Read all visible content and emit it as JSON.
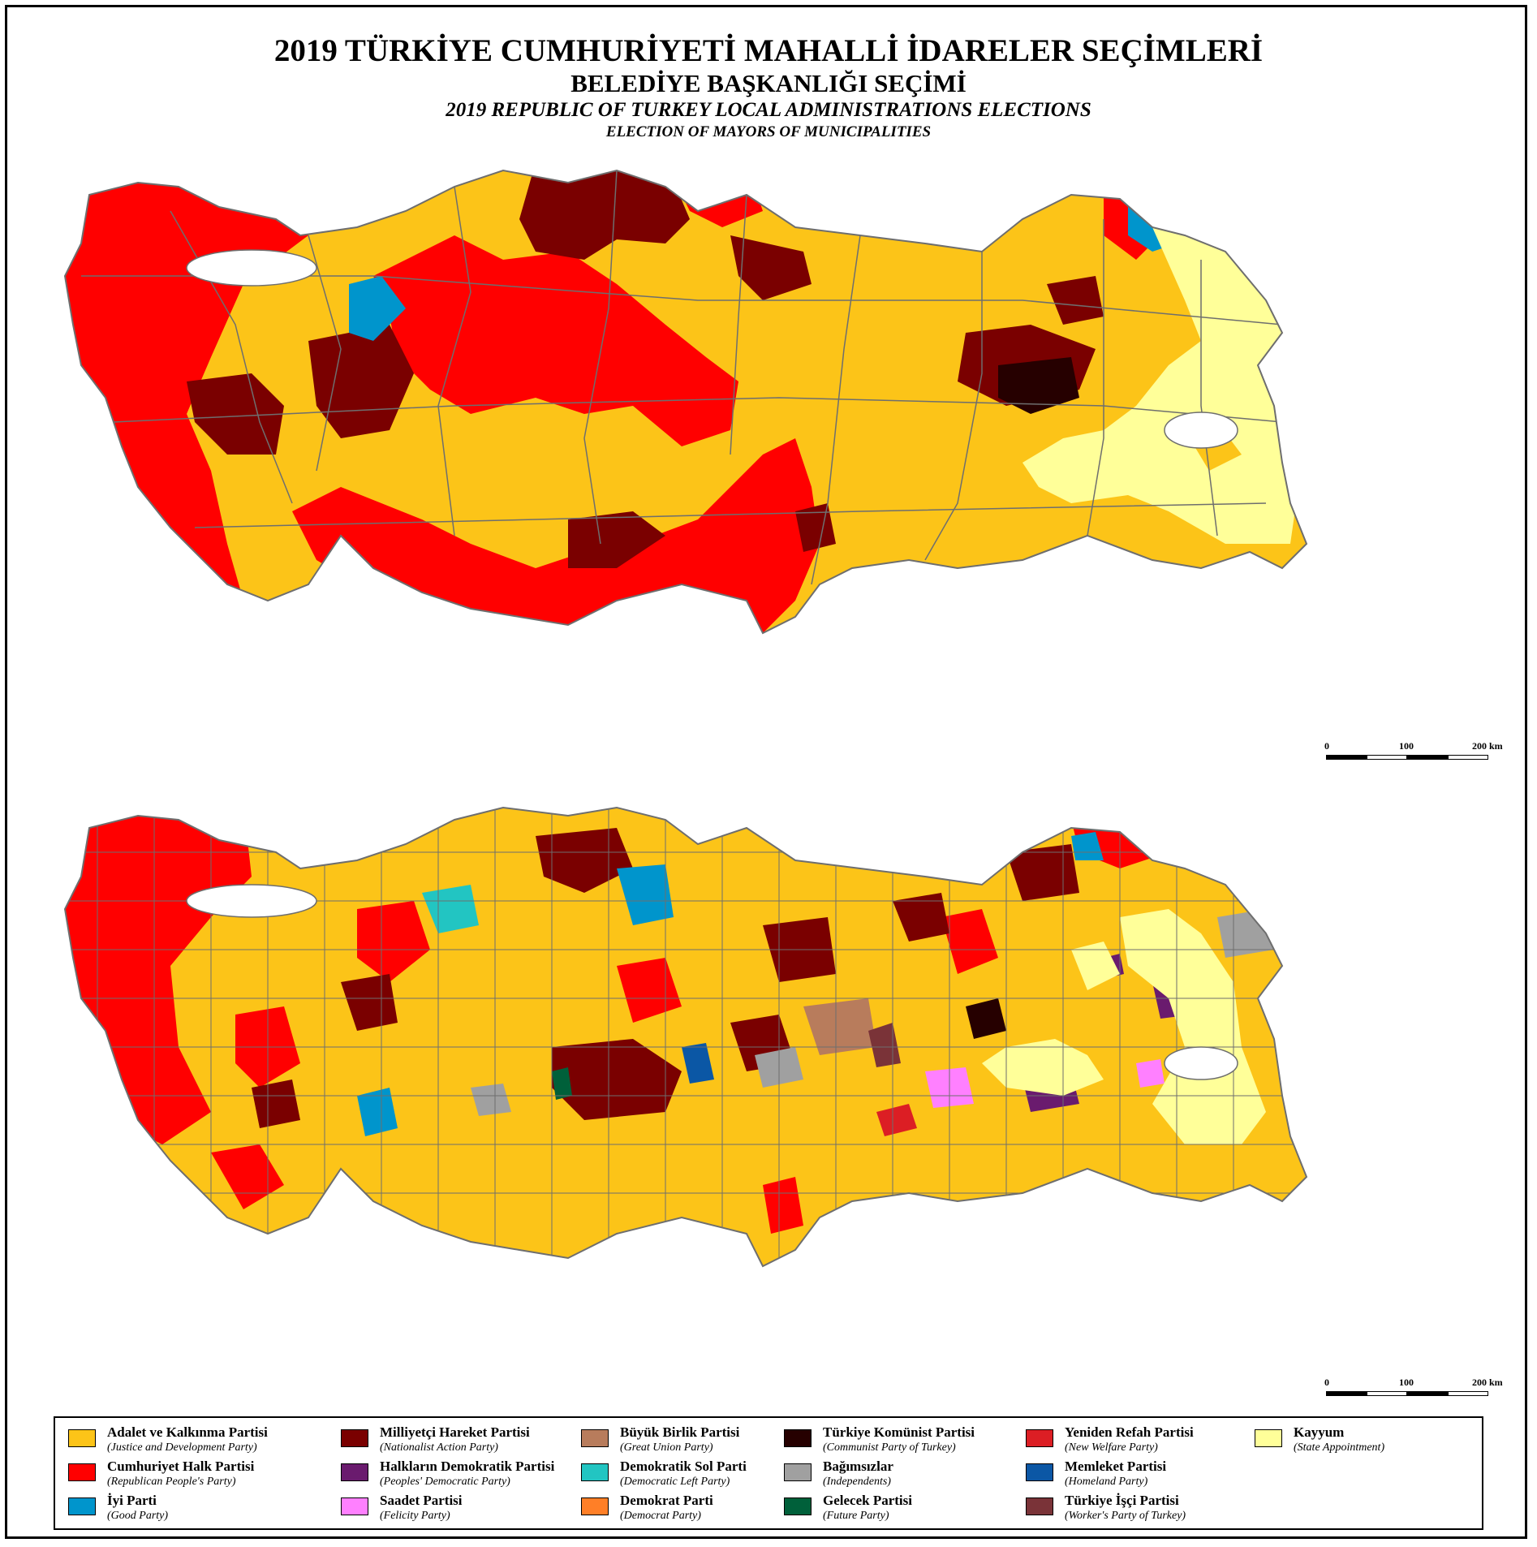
{
  "titles": {
    "tr": "2019 TÜRKİYE CUMHURİYETİ MAHALLİ İDARELER SEÇİMLERİ",
    "tr_sub": "BELEDİYE BAŞKANLIĞI SEÇİMİ",
    "en": "2019 REPUBLIC OF TURKEY LOCAL ADMINISTRATIONS ELECTIONS",
    "en_sub": "ELECTION OF MAYORS OF MUNICIPALITIES"
  },
  "scalebar": {
    "labels": [
      "0",
      "100",
      "200 km"
    ]
  },
  "legend": [
    {
      "name": "Adalet ve Kalkınma Partisi",
      "en": "(Justice and Development Party)",
      "color": "#fcc418"
    },
    {
      "name": "Cumhuriyet Halk Partisi",
      "en": "(Republican People's Party)",
      "color": "#ff0000"
    },
    {
      "name": "İyi Parti",
      "en": "(Good Party)",
      "color": "#0095cc"
    },
    {
      "name": "Milliyetçi Hareket Partisi",
      "en": "(Nationalist Action Party)",
      "color": "#7a0000"
    },
    {
      "name": "Halkların Demokratik Partisi",
      "en": "(Peoples' Democratic Party)",
      "color": "#6a1b6e"
    },
    {
      "name": "Saadet Partisi",
      "en": "(Felicity Party)",
      "color": "#ff80ff"
    },
    {
      "name": "Büyük Birlik Partisi",
      "en": "(Great Union Party)",
      "color": "#b87c5c"
    },
    {
      "name": "Demokratik Sol Parti",
      "en": "(Democratic Left Party)",
      "color": "#22c5c2"
    },
    {
      "name": "Demokrat Parti",
      "en": "(Democrat Party)",
      "color": "#ff7f27"
    },
    {
      "name": "Türkiye Komünist Partisi",
      "en": "(Communist Party of Turkey)",
      "color": "#260000"
    },
    {
      "name": "Bağımsızlar",
      "en": "(Independents)",
      "color": "#a0a0a0"
    },
    {
      "name": "Gelecek Partisi",
      "en": "(Future Party)",
      "color": "#00603a"
    },
    {
      "name": "Yeniden Refah Partisi",
      "en": "(New Welfare Party)",
      "color": "#dc1e24"
    },
    {
      "name": "Memleket Partisi",
      "en": "(Homeland Party)",
      "color": "#0b57a5"
    },
    {
      "name": "Türkiye İşçi Partisi",
      "en": "(Worker's Party of Turkey)",
      "color": "#7a3338"
    },
    {
      "name": "Kayyum",
      "en": "(State Appointment)",
      "color": "#ffff99"
    }
  ]
}
